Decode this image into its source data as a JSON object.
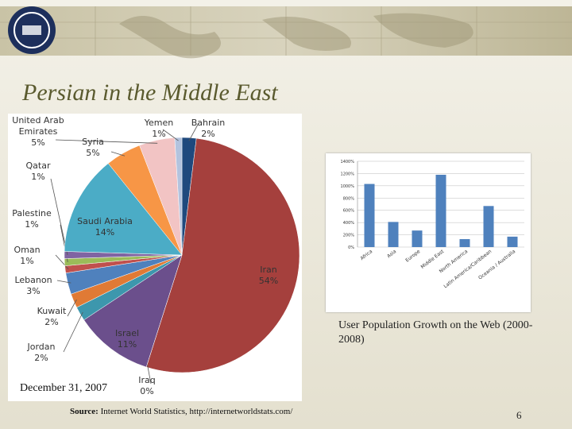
{
  "slide": {
    "title": "Persian in the Middle East",
    "caption": "User Population Growth on the Web (2000-2008)",
    "date": "December 31, 2007",
    "source_label": "Source:",
    "source": "Internet World Statistics, http://internetworldstats.com/",
    "page_number": 6
  },
  "chart_data": [
    {
      "type": "pie",
      "categories": [
        "Bahrain",
        "Iran",
        "Iraq",
        "Israel",
        "Jordan",
        "Kuwait",
        "Lebanon",
        "Oman",
        "Palestine",
        "Qatar",
        "Saudi Arabia",
        "Syria",
        "United Arab Emirates",
        "Yemen"
      ],
      "values": [
        2,
        54,
        0,
        11,
        2,
        2,
        3,
        1,
        1,
        1,
        14,
        5,
        5,
        1
      ],
      "value_labels": [
        "2%",
        "54%",
        "0%",
        "11%",
        "2%",
        "2%",
        "3%",
        "1%",
        "1%",
        "1%",
        "14%",
        "5%",
        "5%",
        "1%"
      ],
      "colors": [
        "#1f497d",
        "#a5403d",
        "#4bacc6",
        "#6b4f8c",
        "#3d97ad",
        "#e07a35",
        "#4f81bd",
        "#c0504d",
        "#9bbb59",
        "#8064a2",
        "#4bacc6",
        "#f79646",
        "#f2c4c4",
        "#b3c3de"
      ]
    },
    {
      "type": "bar",
      "categories": [
        "Africa",
        "Asia",
        "Europe",
        "Middle East",
        "North America",
        "Latin America/Caribbean",
        "Oceania / Australia"
      ],
      "values": [
        1030,
        410,
        270,
        1180,
        130,
        670,
        170
      ],
      "color": "#4f81bd",
      "ylim": [
        0,
        1400
      ],
      "yticks": [
        {
          "value": 0,
          "label": "0%"
        },
        {
          "value": 200,
          "label": "200%"
        },
        {
          "value": 400,
          "label": "400%"
        },
        {
          "value": 600,
          "label": "600%"
        },
        {
          "value": 800,
          "label": "800%"
        },
        {
          "value": 1000,
          "label": "1000%"
        },
        {
          "value": 1200,
          "label": "1200%"
        },
        {
          "value": 1400,
          "label": "1400%"
        }
      ],
      "grid": true
    }
  ]
}
